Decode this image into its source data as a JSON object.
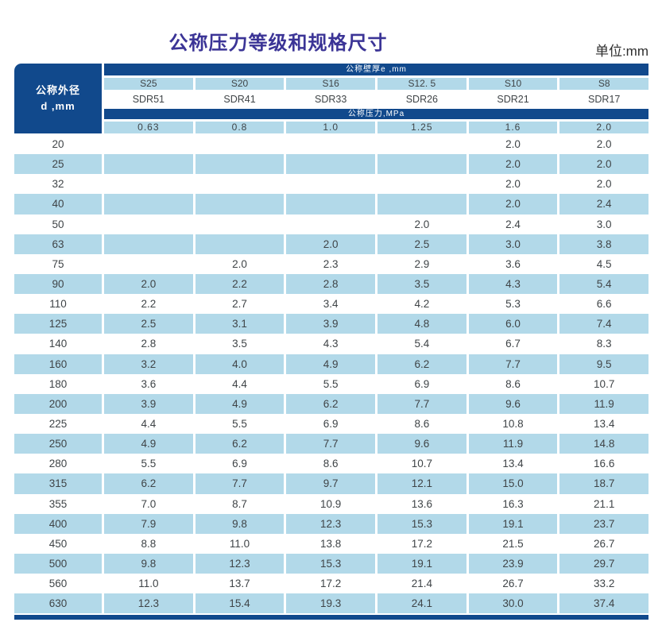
{
  "page": {
    "title": "公称压力等级和规格尺寸",
    "unit_label": "单位:mm"
  },
  "colors": {
    "dark_blue": "#11498c",
    "light_blue": "#b2d9e9",
    "title_color": "#3b3496",
    "body_text": "#3f4447"
  },
  "table": {
    "outer_diameter_header": {
      "line1": "公称外径",
      "line2": "d ,mm"
    },
    "wall_thickness_header": "公称壁厚e ,mm",
    "pressure_header": "公称压力,MPa",
    "series_labels": [
      "S25",
      "S20",
      "S16",
      "S12. 5",
      "S10",
      "S8"
    ],
    "sdr_labels": [
      "SDR51",
      "SDR41",
      "SDR33",
      "SDR26",
      "SDR21",
      "SDR17"
    ],
    "pressure_values": [
      "0.63",
      "0.8",
      "1.0",
      "1.25",
      "1.6",
      "2.0"
    ],
    "rows": [
      {
        "d": "20",
        "values": [
          "",
          "",
          "",
          "",
          "2.0",
          "2.0"
        ]
      },
      {
        "d": "25",
        "values": [
          "",
          "",
          "",
          "",
          "2.0",
          "2.0"
        ]
      },
      {
        "d": "32",
        "values": [
          "",
          "",
          "",
          "",
          "2.0",
          "2.0"
        ]
      },
      {
        "d": "40",
        "values": [
          "",
          "",
          "",
          "",
          "2.0",
          "2.4"
        ]
      },
      {
        "d": "50",
        "values": [
          "",
          "",
          "",
          "2.0",
          "2.4",
          "3.0"
        ]
      },
      {
        "d": "63",
        "values": [
          "",
          "",
          "2.0",
          "2.5",
          "3.0",
          "3.8"
        ]
      },
      {
        "d": "75",
        "values": [
          "",
          "2.0",
          "2.3",
          "2.9",
          "3.6",
          "4.5"
        ]
      },
      {
        "d": "90",
        "values": [
          "2.0",
          "2.2",
          "2.8",
          "3.5",
          "4.3",
          "5.4"
        ]
      },
      {
        "d": "110",
        "values": [
          "2.2",
          "2.7",
          "3.4",
          "4.2",
          "5.3",
          "6.6"
        ]
      },
      {
        "d": "125",
        "values": [
          "2.5",
          "3.1",
          "3.9",
          "4.8",
          "6.0",
          "7.4"
        ]
      },
      {
        "d": "140",
        "values": [
          "2.8",
          "3.5",
          "4.3",
          "5.4",
          "6.7",
          "8.3"
        ]
      },
      {
        "d": "160",
        "values": [
          "3.2",
          "4.0",
          "4.9",
          "6.2",
          "7.7",
          "9.5"
        ]
      },
      {
        "d": "180",
        "values": [
          "3.6",
          "4.4",
          "5.5",
          "6.9",
          "8.6",
          "10.7"
        ]
      },
      {
        "d": "200",
        "values": [
          "3.9",
          "4.9",
          "6.2",
          "7.7",
          "9.6",
          "11.9"
        ]
      },
      {
        "d": "225",
        "values": [
          "4.4",
          "5.5",
          "6.9",
          "8.6",
          "10.8",
          "13.4"
        ]
      },
      {
        "d": "250",
        "values": [
          "4.9",
          "6.2",
          "7.7",
          "9.6",
          "11.9",
          "14.8"
        ]
      },
      {
        "d": "280",
        "values": [
          "5.5",
          "6.9",
          "8.6",
          "10.7",
          "13.4",
          "16.6"
        ]
      },
      {
        "d": "315",
        "values": [
          "6.2",
          "7.7",
          "9.7",
          "12.1",
          "15.0",
          "18.7"
        ]
      },
      {
        "d": "355",
        "values": [
          "7.0",
          "8.7",
          "10.9",
          "13.6",
          "16.3",
          "21.1"
        ]
      },
      {
        "d": "400",
        "values": [
          "7.9",
          "9.8",
          "12.3",
          "15.3",
          "19.1",
          "23.7"
        ]
      },
      {
        "d": "450",
        "values": [
          "8.8",
          "11.0",
          "13.8",
          "17.2",
          "21.5",
          "26.7"
        ]
      },
      {
        "d": "500",
        "values": [
          "9.8",
          "12.3",
          "15.3",
          "19.1",
          "23.9",
          "29.7"
        ]
      },
      {
        "d": "560",
        "values": [
          "11.0",
          "13.7",
          "17.2",
          "21.4",
          "26.7",
          "33.2"
        ]
      },
      {
        "d": "630",
        "values": [
          "12.3",
          "15.4",
          "19.3",
          "24.1",
          "30.0",
          "37.4"
        ]
      }
    ]
  }
}
